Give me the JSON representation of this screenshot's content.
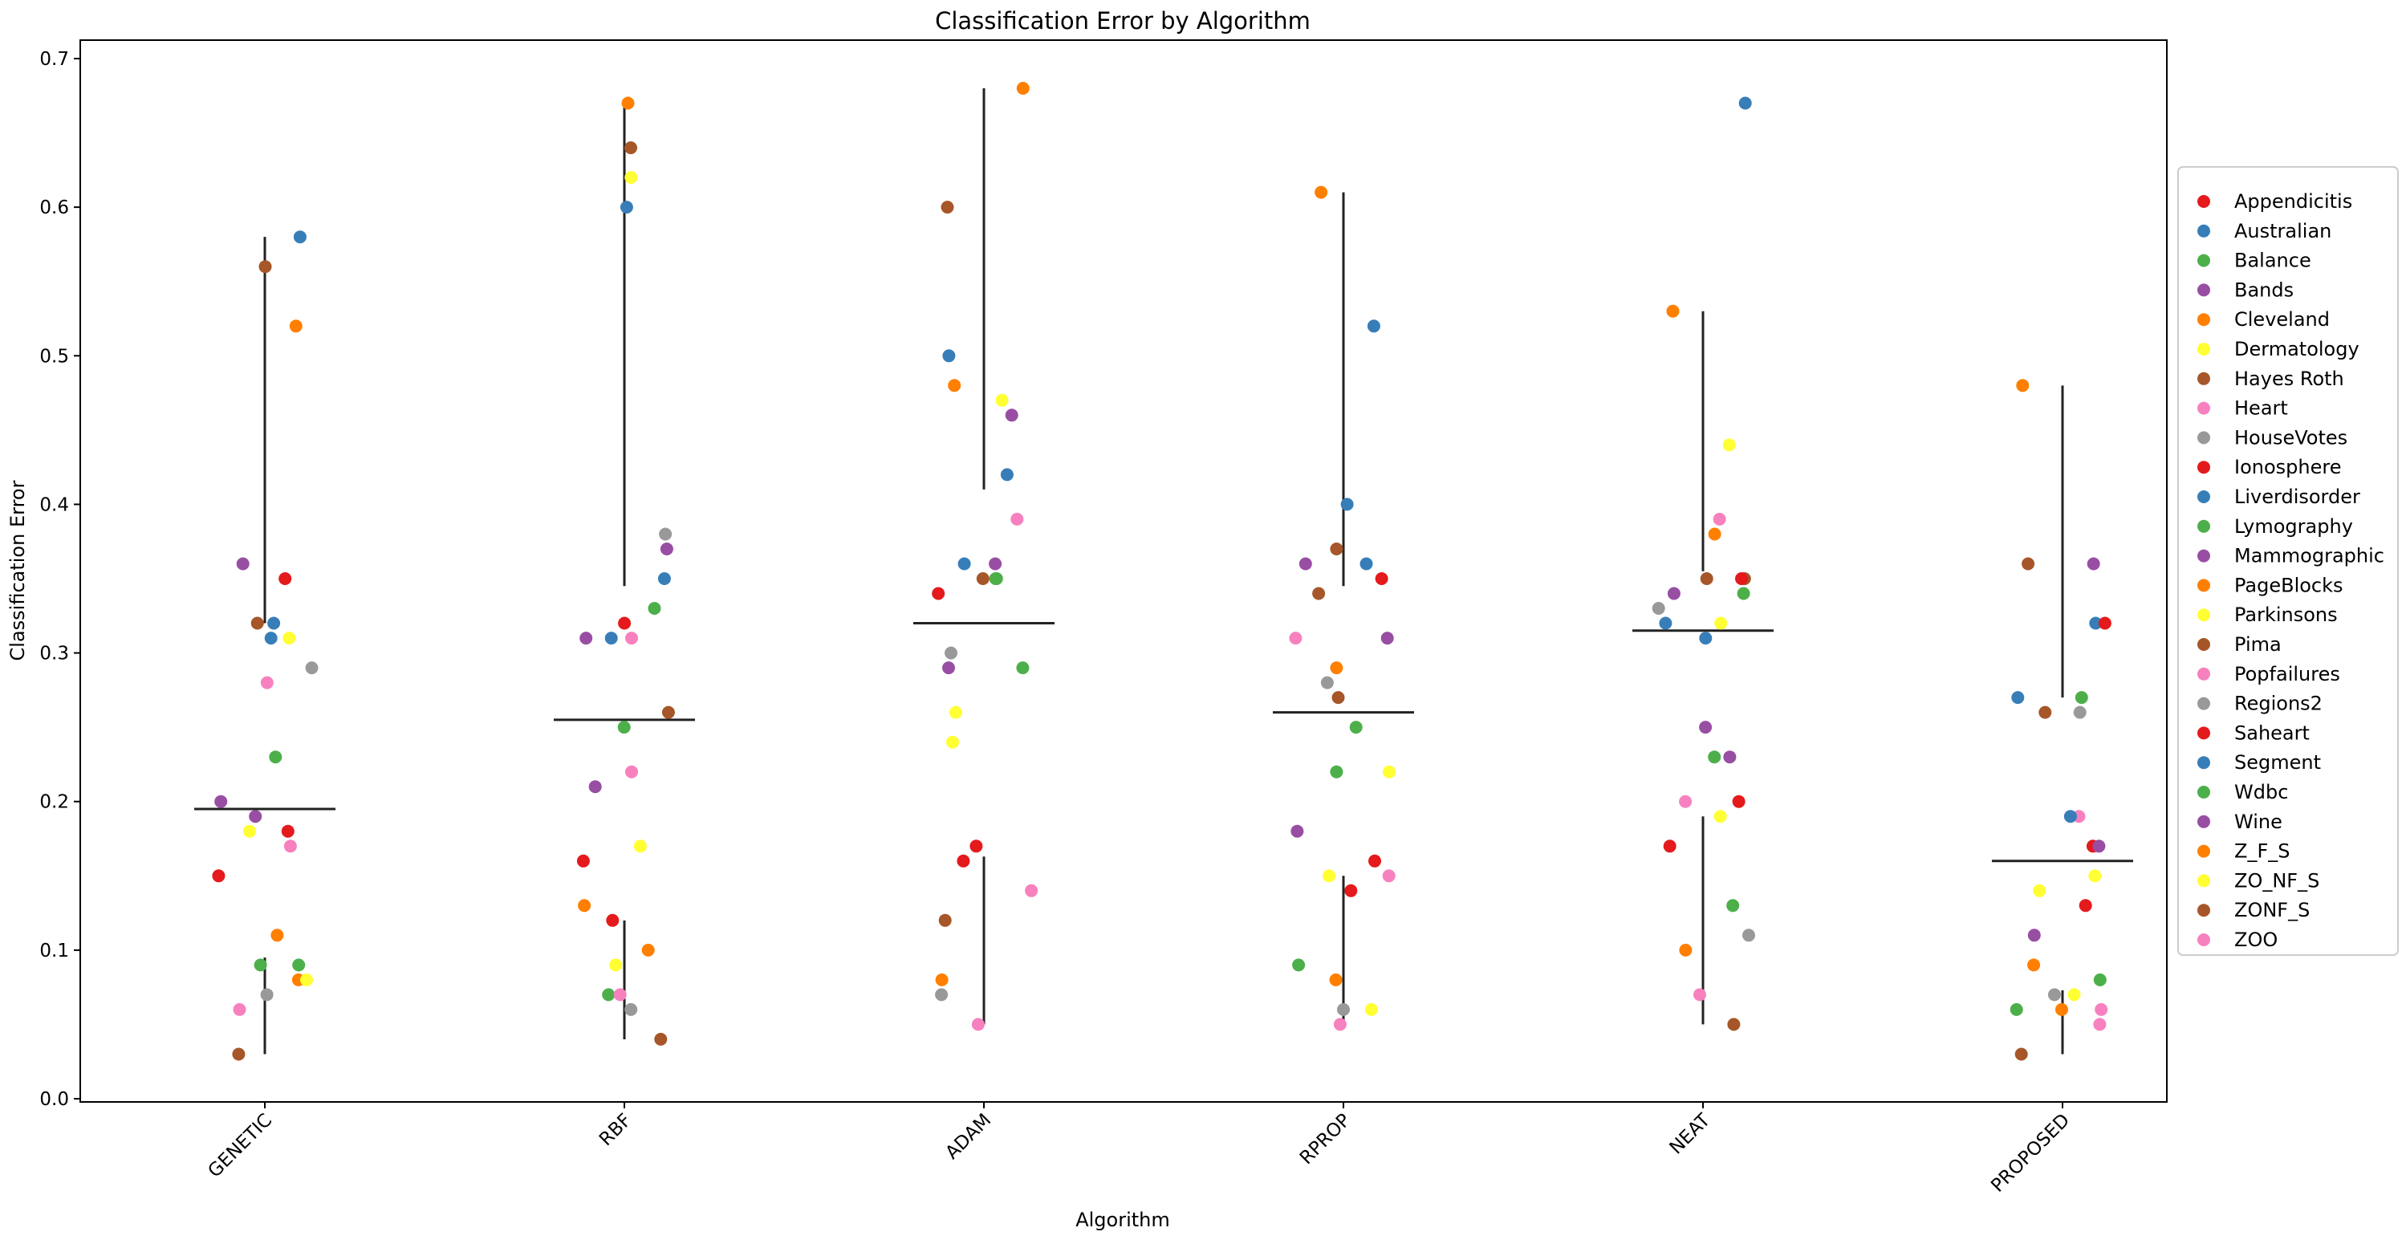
{
  "chart_data": {
    "type": "scatter",
    "title": "Classification Error by Algorithm",
    "xlabel": "Algorithm",
    "ylabel": "Classification Error",
    "ylim": [
      0,
      0.7
    ],
    "y_ticks": [
      "0.0",
      "0.1",
      "0.2",
      "0.3",
      "0.4",
      "0.5",
      "0.6",
      "0.7"
    ],
    "categories": [
      "GENETIC",
      "RBF",
      "ADAM",
      "RPROP",
      "NEAT",
      "PROPOSED"
    ],
    "grid": false,
    "legend_position": "right",
    "series": [
      {
        "name": "Appendicitis",
        "color": "#e41a1c",
        "values": [
          0.18,
          0.16,
          0.17,
          0.16,
          0.17,
          0.17
        ]
      },
      {
        "name": "Australian",
        "color": "#377eb8",
        "values": [
          0.31,
          0.31,
          0.36,
          0.4,
          0.32,
          0.27
        ]
      },
      {
        "name": "Balance",
        "color": "#4daf4a",
        "values": [
          0.09,
          0.07,
          0.29,
          0.09,
          0.13,
          0.06
        ]
      },
      {
        "name": "Bands",
        "color": "#984ea3",
        "values": [
          0.36,
          0.37,
          0.36,
          0.36,
          0.34,
          0.36
        ]
      },
      {
        "name": "Cleveland",
        "color": "#ff7f00",
        "values": [
          0.52,
          0.67,
          0.68,
          0.61,
          0.53,
          0.48
        ]
      },
      {
        "name": "Dermatology",
        "color": "#ffff33",
        "values": [
          0.31,
          0.62,
          0.47,
          0.22,
          0.19,
          0.14
        ]
      },
      {
        "name": "Hayes Roth",
        "color": "#a65628",
        "values": [
          0.56,
          0.64,
          0.6,
          0.37,
          0.35,
          0.36
        ]
      },
      {
        "name": "Heart",
        "color": "#f781bf",
        "values": [
          0.28,
          0.22,
          0.39,
          0.31,
          0.39,
          0.19
        ]
      },
      {
        "name": "HouseVotes",
        "color": "#999999",
        "values": [
          0.07,
          0.06,
          0.07,
          0.06,
          0.11,
          0.07
        ]
      },
      {
        "name": "Ionosphere",
        "color": "#e41a1c",
        "values": [
          0.15,
          0.12,
          0.16,
          0.14,
          0.2,
          0.13
        ]
      },
      {
        "name": "Liverdisorder",
        "color": "#377eb8",
        "values": [
          0.32,
          0.35,
          0.42,
          0.36,
          0.31,
          0.32
        ]
      },
      {
        "name": "Lymography",
        "color": "#4daf4a",
        "values": [
          0.23,
          0.33,
          0.35,
          0.25,
          0.34,
          0.27
        ]
      },
      {
        "name": "Mammographic",
        "color": "#984ea3",
        "values": [
          0.19,
          0.21,
          0.29,
          0.18,
          0.25,
          0.17
        ]
      },
      {
        "name": "PageBlocks",
        "color": "#ff7f00",
        "values": [
          0.08,
          0.1,
          0.08,
          0.08,
          0.1,
          0.06
        ]
      },
      {
        "name": "Parkinsons",
        "color": "#ffff33",
        "values": [
          0.18,
          0.17,
          0.26,
          0.15,
          0.32,
          0.15
        ]
      },
      {
        "name": "Pima",
        "color": "#a65628",
        "values": [
          0.32,
          0.26,
          0.35,
          0.34,
          0.35,
          0.26
        ]
      },
      {
        "name": "Popfailures",
        "color": "#f781bf",
        "values": [
          0.06,
          0.07,
          0.05,
          0.05,
          0.07,
          0.05
        ]
      },
      {
        "name": "Regions2",
        "color": "#999999",
        "values": [
          0.29,
          0.38,
          0.3,
          0.28,
          0.33,
          0.26
        ]
      },
      {
        "name": "Saheart",
        "color": "#e41a1c",
        "values": [
          0.35,
          0.32,
          0.34,
          0.35,
          0.35,
          0.32
        ]
      },
      {
        "name": "Segment",
        "color": "#377eb8",
        "values": [
          0.58,
          0.6,
          0.5,
          0.52,
          0.67,
          0.19
        ]
      },
      {
        "name": "Wdbc",
        "color": "#4daf4a",
        "values": [
          0.09,
          0.25,
          0.35,
          0.22,
          0.23,
          0.08
        ]
      },
      {
        "name": "Wine",
        "color": "#984ea3",
        "values": [
          0.2,
          0.31,
          0.46,
          0.31,
          0.23,
          0.11
        ]
      },
      {
        "name": "Z_F_S",
        "color": "#ff7f00",
        "values": [
          0.11,
          0.13,
          0.48,
          0.29,
          0.38,
          0.09
        ]
      },
      {
        "name": "ZO_NF_S",
        "color": "#ffff33",
        "values": [
          0.08,
          0.09,
          0.24,
          0.06,
          0.44,
          0.07
        ]
      },
      {
        "name": "ZONF_S",
        "color": "#a65628",
        "values": [
          0.03,
          0.04,
          0.12,
          0.27,
          0.05,
          0.03
        ]
      },
      {
        "name": "ZOO",
        "color": "#f781bf",
        "values": [
          0.17,
          0.31,
          0.14,
          0.15,
          0.2,
          0.06
        ]
      }
    ],
    "summary_lines": {
      "mean": [
        0.195,
        0.255,
        0.32,
        0.26,
        0.315,
        0.16
      ],
      "upper": [
        [
          0.58,
          0.32
        ],
        [
          0.67,
          0.345
        ],
        [
          0.68,
          0.41
        ],
        [
          0.61,
          0.345
        ],
        [
          0.53,
          0.355
        ],
        [
          0.48,
          0.27
        ]
      ],
      "lower": [
        [
          0.095,
          0.03
        ],
        [
          0.12,
          0.04
        ],
        [
          0.163,
          0.05
        ],
        [
          0.15,
          0.05
        ],
        [
          0.19,
          0.05
        ],
        [
          0.073,
          0.03
        ]
      ]
    }
  }
}
